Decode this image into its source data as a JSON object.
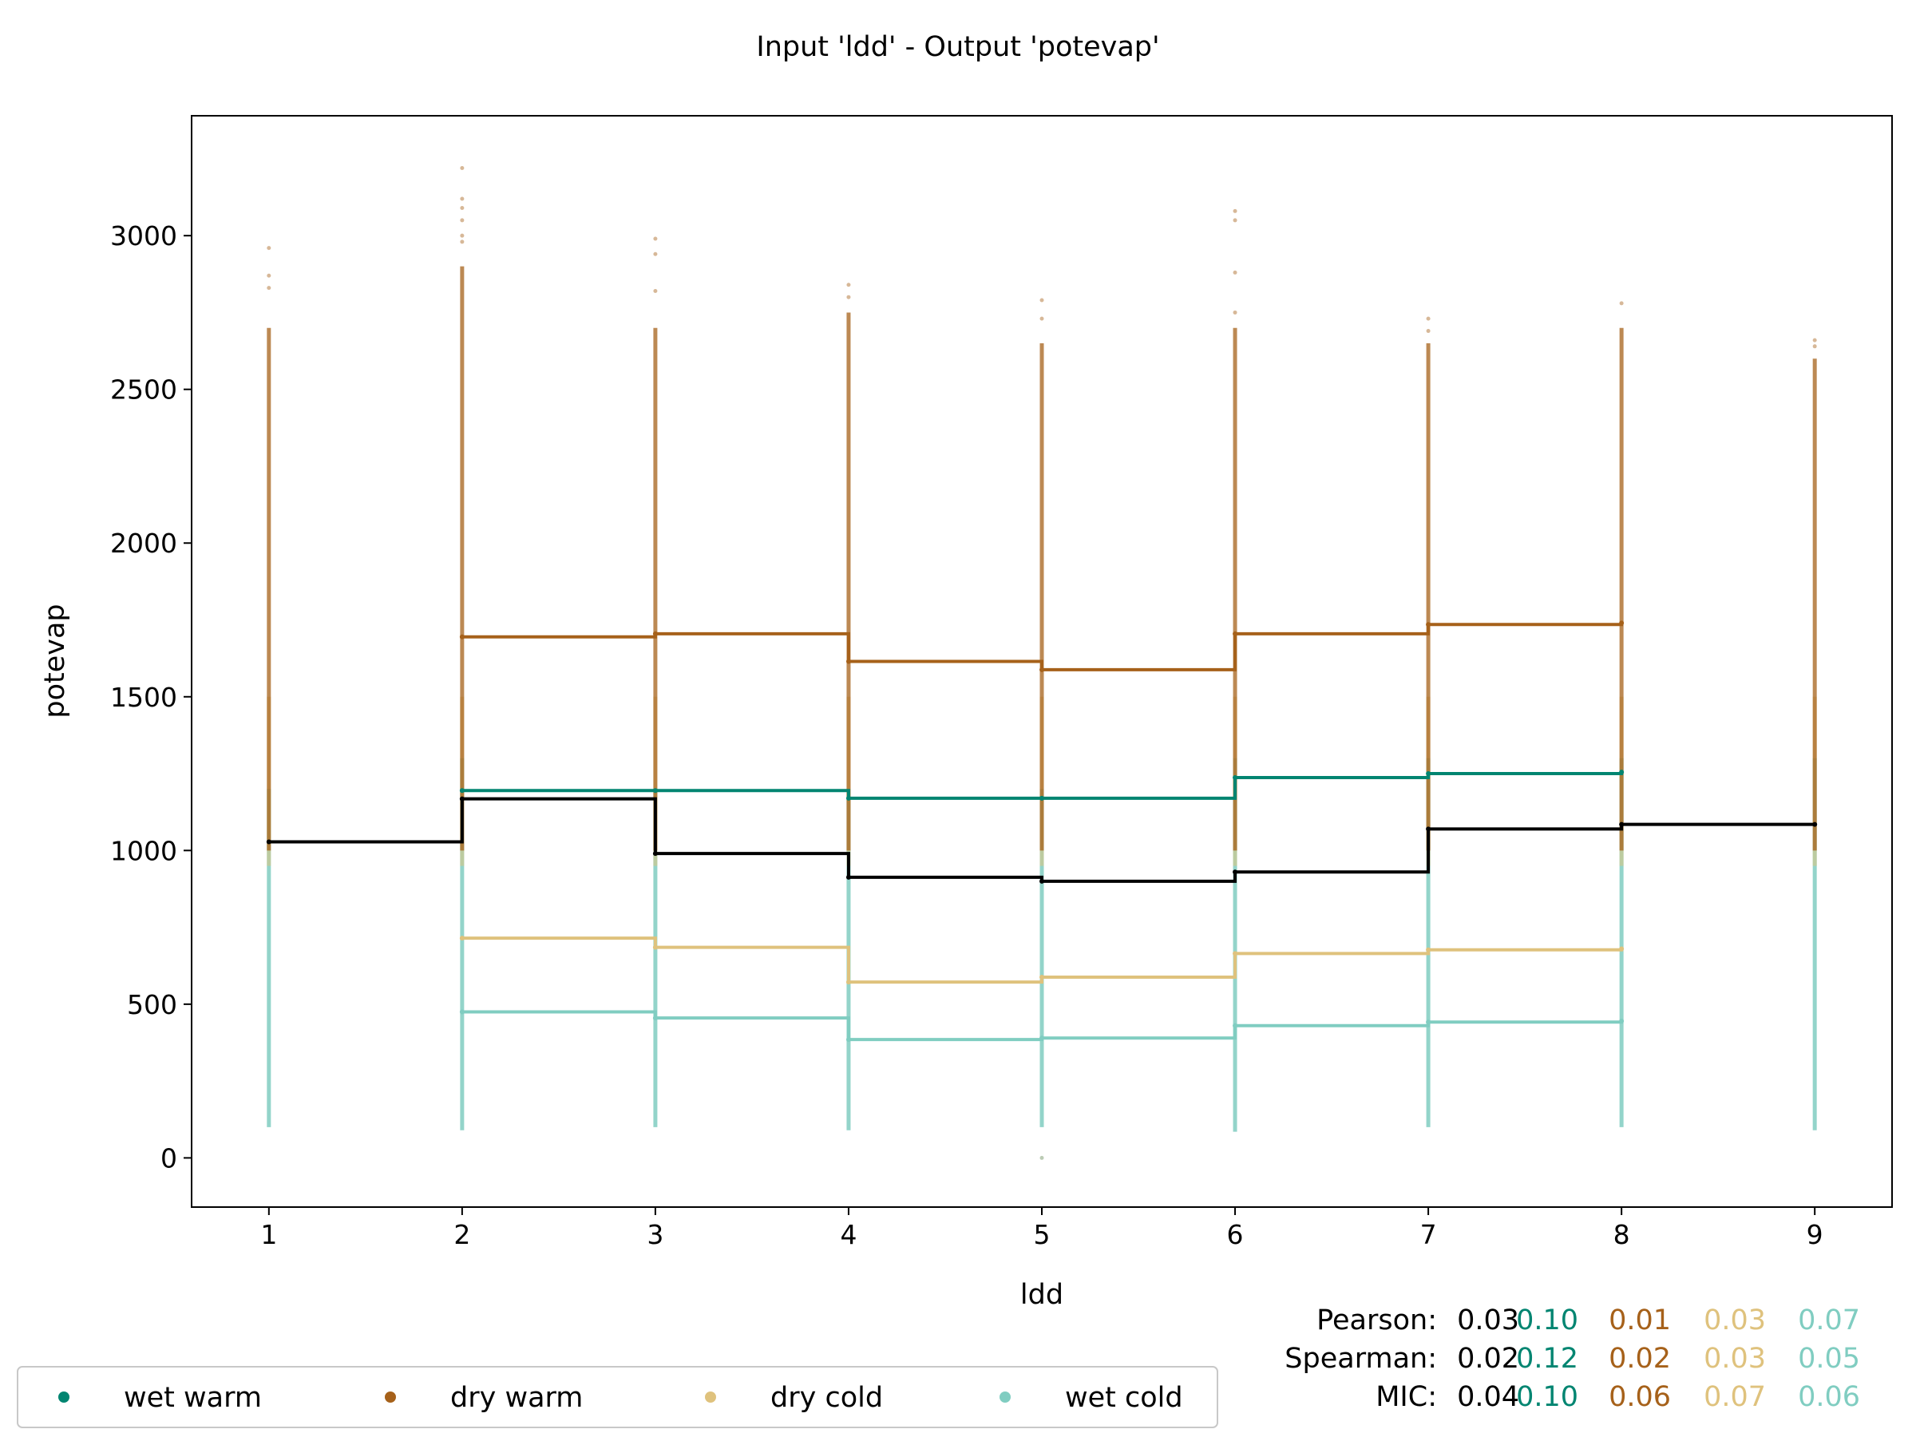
{
  "chart_data": {
    "type": "step",
    "title": "Input 'ldd' - Output 'potevap'",
    "xlabel": "ldd",
    "ylabel": "potevap",
    "xlim": [
      0.6,
      9.4
    ],
    "ylim": [
      -160,
      3390
    ],
    "x_ticks": [
      1,
      2,
      3,
      4,
      5,
      6,
      7,
      8,
      9
    ],
    "y_ticks": [
      0,
      500,
      1000,
      1500,
      2000,
      2500,
      3000
    ],
    "grid": false,
    "legend_position": "bottom-left",
    "series": [
      {
        "name": "wet warm",
        "color": "#018571",
        "x": [
          2,
          3,
          4,
          5,
          6,
          7,
          8
        ],
        "values": [
          1195,
          1195,
          1170,
          1170,
          1237,
          1250,
          1255
        ]
      },
      {
        "name": "dry warm",
        "color": "#a6611a",
        "x": [
          2,
          3,
          4,
          5,
          6,
          7,
          8
        ],
        "values": [
          1695,
          1705,
          1615,
          1588,
          1705,
          1735,
          1740
        ]
      },
      {
        "name": "dry cold",
        "color": "#dfc27d",
        "x": [
          2,
          3,
          4,
          5,
          6,
          7,
          8
        ],
        "values": [
          715,
          685,
          572,
          588,
          665,
          677,
          680
        ]
      },
      {
        "name": "wet cold",
        "color": "#80cdc1",
        "x": [
          2,
          3,
          4,
          5,
          6,
          7,
          8
        ],
        "values": [
          475,
          455,
          385,
          390,
          430,
          442,
          445
        ]
      },
      {
        "name": "",
        "color": "#000000",
        "x": [
          1,
          2,
          3,
          4,
          5,
          6,
          7,
          8,
          9
        ],
        "values": [
          1028,
          1168,
          990,
          913,
          900,
          930,
          1070,
          1085,
          1085
        ]
      }
    ],
    "scatter_columns": [
      {
        "x": 1,
        "warm_range": [
          1000,
          2700
        ],
        "cold_range": [
          100,
          1200
        ],
        "outliers": [
          2960,
          2870,
          2830
        ]
      },
      {
        "x": 2,
        "warm_range": [
          1000,
          2900
        ],
        "cold_range": [
          90,
          1300
        ],
        "outliers": [
          3220,
          3120,
          3090,
          3050,
          3000,
          2980
        ]
      },
      {
        "x": 3,
        "warm_range": [
          1000,
          2700
        ],
        "cold_range": [
          100,
          1200
        ],
        "outliers": [
          2990,
          2940,
          2820
        ]
      },
      {
        "x": 4,
        "warm_range": [
          1000,
          2750
        ],
        "cold_range": [
          90,
          1200
        ],
        "outliers": [
          2840,
          2800
        ]
      },
      {
        "x": 5,
        "warm_range": [
          1000,
          2650
        ],
        "cold_range": [
          100,
          1200
        ],
        "outliers": [
          2790,
          2730,
          0
        ]
      },
      {
        "x": 6,
        "warm_range": [
          1000,
          2700
        ],
        "cold_range": [
          85,
          1300
        ],
        "outliers": [
          3080,
          3050,
          2880,
          2750
        ]
      },
      {
        "x": 7,
        "warm_range": [
          1000,
          2650
        ],
        "cold_range": [
          100,
          1300
        ],
        "outliers": [
          2730,
          2690
        ]
      },
      {
        "x": 8,
        "warm_range": [
          1000,
          2700
        ],
        "cold_range": [
          100,
          1300
        ],
        "outliers": [
          2780
        ]
      },
      {
        "x": 9,
        "warm_range": [
          1000,
          2600
        ],
        "cold_range": [
          90,
          1300
        ],
        "outliers": [
          2660,
          2640
        ]
      }
    ],
    "stats": {
      "rows": [
        {
          "label": "Pearson:",
          "values": [
            "0.03",
            "0.10",
            "0.01",
            "0.03",
            "0.07"
          ]
        },
        {
          "label": "Spearman:",
          "values": [
            "0.02",
            "0.12",
            "0.02",
            "0.03",
            "0.05"
          ]
        },
        {
          "label": "MIC:",
          "values": [
            "0.04",
            "0.10",
            "0.06",
            "0.07",
            "0.06"
          ]
        }
      ],
      "colors": [
        "#000000",
        "#018571",
        "#a6611a",
        "#dfc27d",
        "#80cdc1"
      ]
    }
  }
}
